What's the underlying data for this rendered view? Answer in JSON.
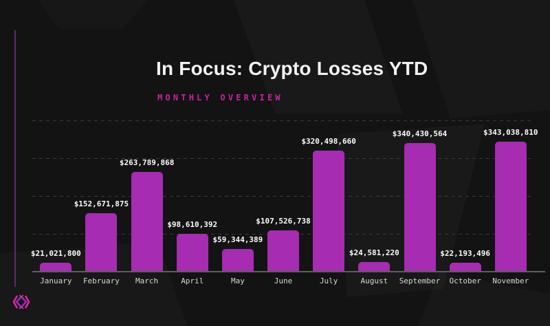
{
  "header": {
    "title": "In Focus: Crypto Losses YTD",
    "subtitle": "MONTHLY OVERVIEW"
  },
  "branding": {
    "logo_icon": "diamond-brackets-logo",
    "logo_colors": [
      "#e3259f",
      "#9a2fc4"
    ]
  },
  "colors": {
    "background": "#131314",
    "bar": "#a62cb1",
    "accent_magenta": "#c7259c",
    "gridline": "#3b3b3b",
    "axis_line": "#5e5e5e",
    "title_text": "#f2f2f2",
    "value_text": "#fcfcfc",
    "month_text": "#d8d8d8"
  },
  "chart_data": {
    "type": "bar",
    "title": "In Focus: Crypto Losses YTD",
    "subtitle": "MONTHLY OVERVIEW",
    "categories": [
      "January",
      "February",
      "March",
      "April",
      "May",
      "June",
      "July",
      "August",
      "September",
      "October",
      "November"
    ],
    "values": [
      21021800,
      152671875,
      263789868,
      98610392,
      59344389,
      107526738,
      320498660,
      24581220,
      340430564,
      22193496,
      343038810
    ],
    "value_labels": [
      "$21,021,800",
      "$152,671,875",
      "$263,789,868",
      "$98,610,392",
      "$59,344,389",
      "$107,526,738",
      "$320,498,660",
      "$24,581,220",
      "$340,430,564",
      "$22,193,496",
      "$343,038,810"
    ],
    "xlabel": "",
    "ylabel": "",
    "ylim": [
      0,
      400000000
    ],
    "grid": "horizontal dashed lines every 100,000,000 (unlabeled)",
    "legend": "none",
    "bar_color": "#a62cb1"
  }
}
